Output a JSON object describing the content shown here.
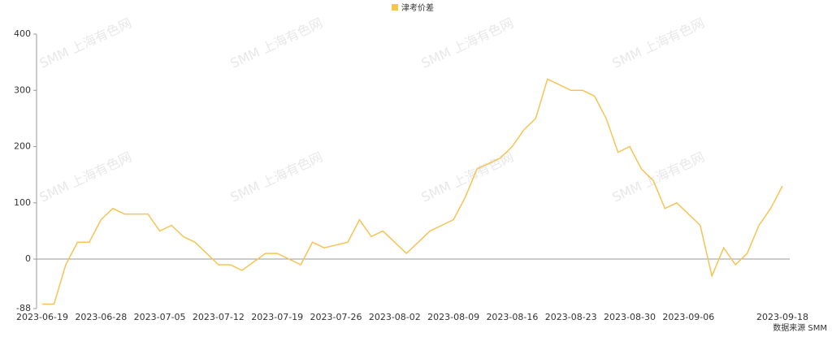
{
  "chart_data": {
    "type": "line",
    "legend_position": "top",
    "series": [
      {
        "name": "津考价差",
        "color": "#f5c453",
        "values": [
          -80,
          -80,
          -10,
          30,
          30,
          70,
          90,
          80,
          80,
          80,
          50,
          60,
          40,
          30,
          10,
          -10,
          -10,
          -20,
          -5,
          10,
          10,
          0,
          -10,
          30,
          20,
          25,
          30,
          70,
          40,
          50,
          30,
          10,
          30,
          50,
          60,
          70,
          110,
          160,
          170,
          180,
          200,
          230,
          250,
          320,
          310,
          300,
          300,
          290,
          250,
          190,
          200,
          160,
          140,
          90,
          100,
          80,
          60,
          -30,
          20,
          -10,
          10,
          60,
          90,
          130
        ]
      }
    ],
    "categories": [
      "2023-06-19",
      null,
      null,
      null,
      null,
      "2023-06-28",
      null,
      null,
      null,
      null,
      "2023-07-05",
      null,
      null,
      null,
      null,
      "2023-07-12",
      null,
      null,
      null,
      null,
      "2023-07-19",
      null,
      null,
      null,
      null,
      "2023-07-26",
      null,
      null,
      null,
      null,
      "2023-08-02",
      null,
      null,
      null,
      null,
      "2023-08-09",
      null,
      null,
      null,
      null,
      "2023-08-16",
      null,
      null,
      null,
      null,
      "2023-08-23",
      null,
      null,
      null,
      null,
      "2023-08-30",
      null,
      null,
      null,
      null,
      "2023-09-06",
      null,
      null,
      null,
      null,
      null,
      null,
      null,
      "2023-09-18"
    ],
    "ylim": [
      -88,
      400
    ],
    "yticks": [
      -88,
      0,
      100,
      200,
      300,
      400
    ],
    "source": "数据来源 SMM",
    "watermark": "SMM 上海有色网"
  }
}
